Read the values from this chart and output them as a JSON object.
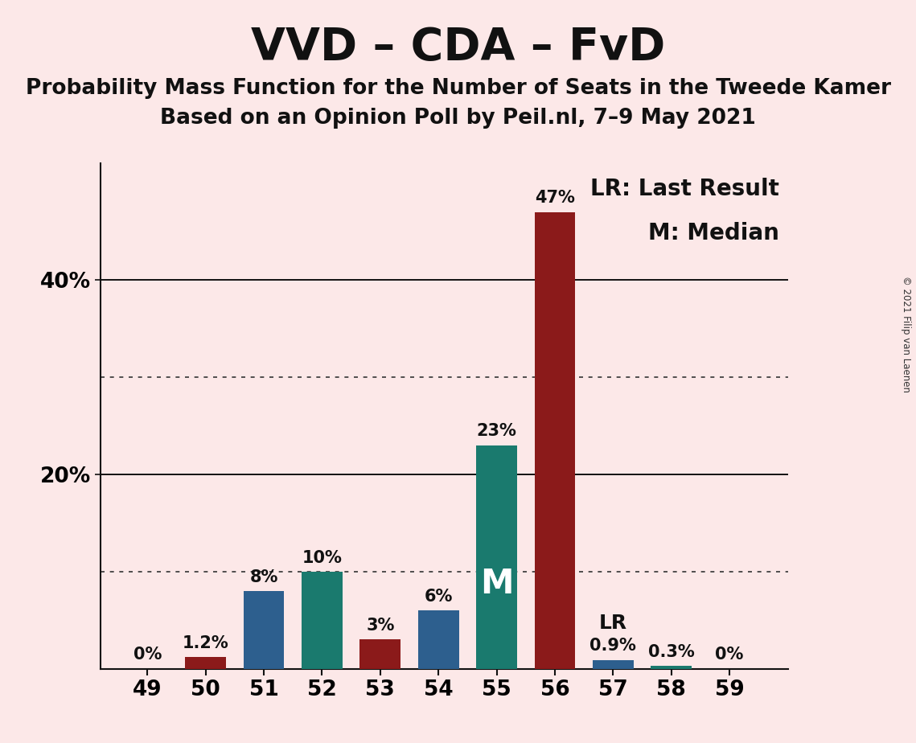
{
  "title": "VVD – CDA – FvD",
  "subtitle1": "Probability Mass Function for the Number of Seats in the Tweede Kamer",
  "subtitle2": "Based on an Opinion Poll by Peil.nl, 7–9 May 2021",
  "copyright_text": "© 2021 Filip van Laenen",
  "seats": [
    49,
    50,
    51,
    52,
    53,
    54,
    55,
    56,
    57,
    58,
    59
  ],
  "values": [
    0.0,
    1.2,
    8.0,
    10.0,
    3.0,
    6.0,
    23.0,
    47.0,
    0.9,
    0.3,
    0.0
  ],
  "labels": [
    "0%",
    "1.2%",
    "8%",
    "10%",
    "3%",
    "6%",
    "23%",
    "47%",
    "0.9%",
    "0.3%",
    "0%"
  ],
  "colors": [
    "#2d5f8e",
    "#8b1a1a",
    "#2d5f8e",
    "#1a7a6e",
    "#8b1a1a",
    "#2d5f8e",
    "#1a7a6e",
    "#8b1a1a",
    "#2d5f8e",
    "#1a7a6e",
    "#1a7a6e"
  ],
  "median_seat": 55,
  "lr_seat": 57,
  "background_color": "#fce8e8",
  "legend_lr": "LR: Last Result",
  "legend_m": "M: Median",
  "lr_label": "LR",
  "m_label": "M",
  "ylim": [
    0,
    52
  ],
  "solid_yticks": [
    20,
    40
  ],
  "dotted_yticks": [
    10,
    30
  ],
  "label_fontsize": 15,
  "title_fontsize": 40,
  "subtitle_fontsize": 19,
  "tick_fontsize": 19,
  "annotation_fontsize": 18,
  "legend_fontsize": 20,
  "bar_width": 0.7
}
